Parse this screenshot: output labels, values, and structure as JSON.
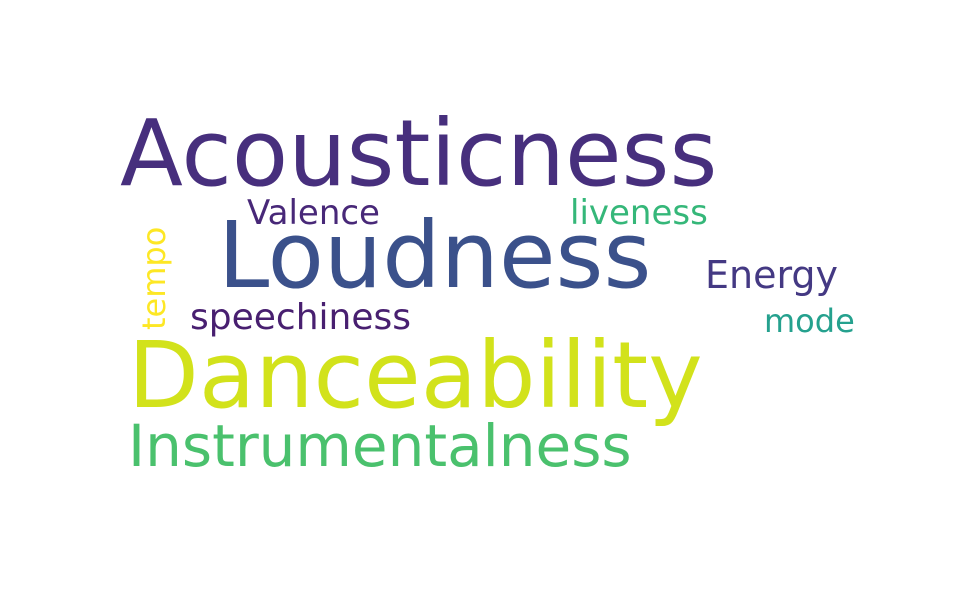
{
  "words": [
    {
      "key": "acousticness",
      "text": "Acousticness",
      "color": "#472f7d"
    },
    {
      "key": "loudness",
      "text": "Loudness",
      "color": "#3b518b"
    },
    {
      "key": "danceability",
      "text": "Danceability",
      "color": "#d2e21b"
    },
    {
      "key": "instrumentalness",
      "text": "Instrumentalness",
      "color": "#4ac16d"
    },
    {
      "key": "valence",
      "text": "Valence",
      "color": "#482878"
    },
    {
      "key": "liveness",
      "text": "liveness",
      "color": "#35b779"
    },
    {
      "key": "energy",
      "text": "Energy",
      "color": "#443983"
    },
    {
      "key": "speechiness",
      "text": "speechiness",
      "color": "#481f70"
    },
    {
      "key": "mode",
      "text": "mode",
      "color": "#25a18e"
    },
    {
      "key": "tempo",
      "text": "tempo",
      "color": "#fde725"
    }
  ]
}
